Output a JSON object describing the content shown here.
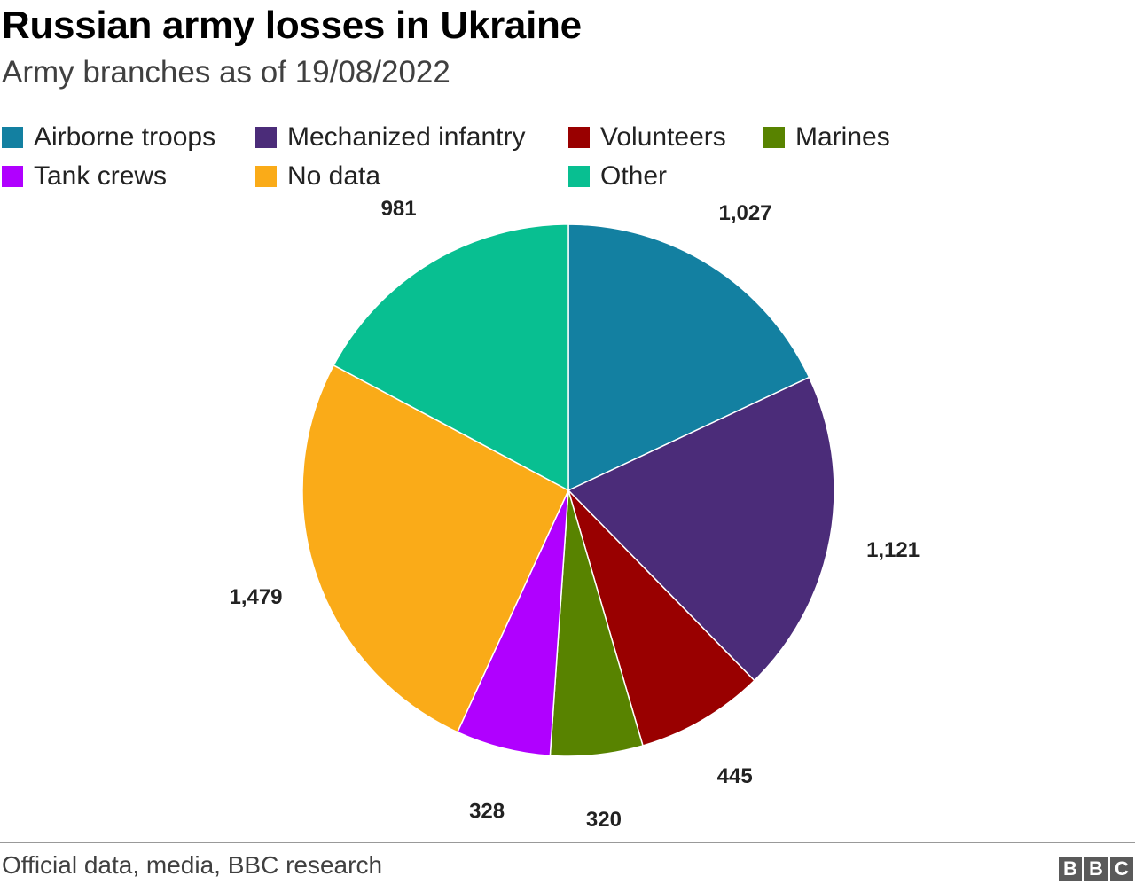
{
  "header": {
    "title": "Russian army losses in Ukraine",
    "subtitle": "Army branches as of 19/08/2022"
  },
  "legend": {
    "items": [
      {
        "label": "Airborne troops",
        "color": "#1380A1"
      },
      {
        "label": "Mechanized infantry",
        "color": "#4B2C79"
      },
      {
        "label": "Volunteers",
        "color": "#990000"
      },
      {
        "label": "Marines",
        "color": "#588300"
      },
      {
        "label": "Tank crews",
        "color": "#B000FF"
      },
      {
        "label": "No data",
        "color": "#FAAB18"
      },
      {
        "label": "Other",
        "color": "#08BF91"
      }
    ]
  },
  "chart_data": {
    "type": "pie",
    "title": "Russian army losses in Ukraine",
    "subtitle": "Army branches as of 19/08/2022",
    "start_angle": "12 o'clock, clockwise",
    "legend_position": "top",
    "slices": [
      {
        "label": "Airborne troops",
        "value": 1027,
        "display": "1,027",
        "color": "#1380A1"
      },
      {
        "label": "Mechanized infantry",
        "value": 1121,
        "display": "1,121",
        "color": "#4B2C79"
      },
      {
        "label": "Volunteers",
        "value": 445,
        "display": "445",
        "color": "#990000"
      },
      {
        "label": "Marines",
        "value": 320,
        "display": "320",
        "color": "#588300"
      },
      {
        "label": "Tank crews",
        "value": 328,
        "display": "328",
        "color": "#B000FF"
      },
      {
        "label": "No data",
        "value": 1479,
        "display": "1,479",
        "color": "#FAAB18"
      },
      {
        "label": "Other",
        "value": 981,
        "display": "981",
        "color": "#08BF91"
      }
    ]
  },
  "footer": {
    "source": "Official data, media, BBC research",
    "logo_letters": [
      "B",
      "B",
      "C"
    ]
  }
}
